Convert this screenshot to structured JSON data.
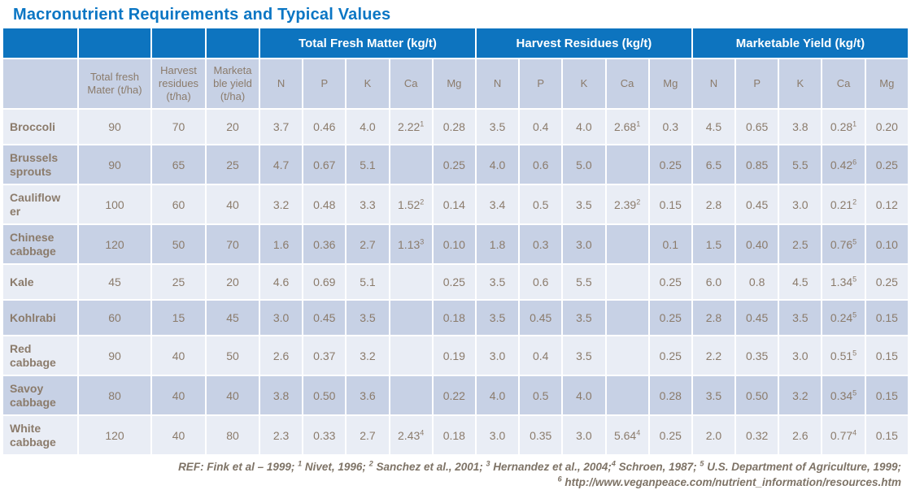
{
  "title": "Macronutrient Requirements and Typical Values",
  "colors": {
    "header_blue": "#0d74bf",
    "title_blue": "#0b76c4",
    "row_light": "#e9edf5",
    "row_dark": "#c7d1e5",
    "text_brown": "#8b7b6b",
    "footer_text": "#7e7366"
  },
  "table": {
    "group_headers": [
      "Total Fresh Matter (kg/t)",
      "Harvest Residues (kg/t)",
      "Marketable Yield (kg/t)"
    ],
    "sub_headers": [
      "",
      "Total fresh\nMater (t/ha)",
      "Harvest\nresidues\n(t/ha)",
      "Marketa\nble yield\n(t/ha)",
      "N",
      "P",
      "K",
      "Ca",
      "Mg",
      "N",
      "P",
      "K",
      "Ca",
      "Mg",
      "N",
      "P",
      "K",
      "Ca",
      "Mg"
    ],
    "rows": [
      {
        "name": "Broccoli",
        "values": [
          "90",
          "70",
          "20",
          "3.7",
          "0.46",
          "4.0",
          {
            "v": "2.22",
            "sup": "1"
          },
          "0.28",
          "3.5",
          "0.4",
          "4.0",
          {
            "v": "2.68",
            "sup": "1"
          },
          "0.3",
          "4.5",
          "0.65",
          "3.8",
          {
            "v": "0.28",
            "sup": "1"
          },
          "0.20"
        ]
      },
      {
        "name": "Brussels\nsprouts",
        "values": [
          "90",
          "65",
          "25",
          "4.7",
          "0.67",
          "5.1",
          "",
          "0.25",
          "4.0",
          "0.6",
          "5.0",
          "",
          "0.25",
          "6.5",
          "0.85",
          "5.5",
          {
            "v": "0.42",
            "sup": "6"
          },
          "0.25"
        ]
      },
      {
        "name": "Cauliflow\ner",
        "values": [
          "100",
          "60",
          "40",
          "3.2",
          "0.48",
          "3.3",
          {
            "v": "1.52",
            "sup": "2"
          },
          "0.14",
          "3.4",
          "0.5",
          "3.5",
          {
            "v": "2.39",
            "sup": "2"
          },
          "0.15",
          "2.8",
          "0.45",
          "3.0",
          {
            "v": "0.21",
            "sup": "2"
          },
          "0.12"
        ]
      },
      {
        "name": "Chinese\ncabbage",
        "values": [
          "120",
          "50",
          "70",
          "1.6",
          "0.36",
          "2.7",
          {
            "v": "1.13",
            "sup": "3"
          },
          "0.10",
          "1.8",
          "0.3",
          "3.0",
          "",
          "0.1",
          "1.5",
          "0.40",
          "2.5",
          {
            "v": "0.76",
            "sup": "5"
          },
          "0.10"
        ]
      },
      {
        "name": "Kale",
        "values": [
          "45",
          "25",
          "20",
          "4.6",
          "0.69",
          "5.1",
          "",
          "0.25",
          "3.5",
          "0.6",
          "5.5",
          "",
          "0.25",
          "6.0",
          "0.8",
          "4.5",
          {
            "v": "1.34",
            "sup": "5"
          },
          "0.25"
        ]
      },
      {
        "name": "Kohlrabi",
        "values": [
          "60",
          "15",
          "45",
          "3.0",
          "0.45",
          "3.5",
          "",
          "0.18",
          "3.5",
          "0.45",
          "3.5",
          "",
          "0.25",
          "2.8",
          "0.45",
          "3.5",
          {
            "v": "0.24",
            "sup": "5"
          },
          "0.15"
        ]
      },
      {
        "name": "Red\ncabbage",
        "values": [
          "90",
          "40",
          "50",
          "2.6",
          "0.37",
          "3.2",
          "",
          "0.19",
          "3.0",
          "0.4",
          "3.5",
          "",
          "0.25",
          "2.2",
          "0.35",
          "3.0",
          {
            "v": "0.51",
            "sup": "5"
          },
          "0.15"
        ]
      },
      {
        "name": "Savoy\ncabbage",
        "values": [
          "80",
          "40",
          "40",
          "3.8",
          "0.50",
          "3.6",
          "",
          "0.22",
          "4.0",
          "0.5",
          "4.0",
          "",
          "0.28",
          "3.5",
          "0.50",
          "3.2",
          {
            "v": "0.34",
            "sup": "5"
          },
          "0.15"
        ]
      },
      {
        "name": "White\ncabbage",
        "values": [
          "120",
          "40",
          "80",
          "2.3",
          "0.33",
          "2.7",
          {
            "v": "2.43",
            "sup": "4"
          },
          "0.18",
          "3.0",
          "0.35",
          "3.0",
          {
            "v": "5.64",
            "sup": "4"
          },
          "0.25",
          "2.0",
          "0.32",
          "2.6",
          {
            "v": "0.77",
            "sup": "4"
          },
          "0.15"
        ]
      }
    ]
  },
  "footer": {
    "line1": [
      {
        "text": "REF: Fink et al – 1999; "
      },
      {
        "sup": "1"
      },
      {
        "text": " Nivet, 1996; "
      },
      {
        "sup": "2"
      },
      {
        "text": " Sanchez et al., 2001; "
      },
      {
        "sup": "3"
      },
      {
        "text": " Hernandez et al., 2004;"
      },
      {
        "sup": "4"
      },
      {
        "text": " Schroen, 1987; "
      },
      {
        "sup": "5"
      },
      {
        "text": " U.S. Department of Agriculture, 1999;"
      }
    ],
    "line2": [
      {
        "sup": "6"
      },
      {
        "text": " http://www.veganpeace.com/nutrient_information/resources.htm"
      }
    ]
  }
}
